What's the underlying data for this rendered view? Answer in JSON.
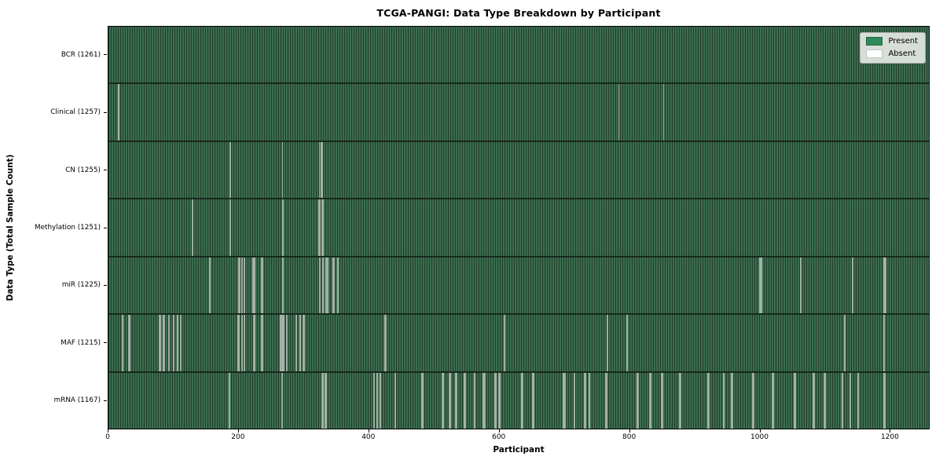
{
  "figure": {
    "title": "TCGA-PANGI: Data Type Breakdown by Participant",
    "x_axis": {
      "label": "Participant",
      "ticks": [
        "0",
        "200",
        "400",
        "600",
        "800",
        "1000",
        "1200"
      ],
      "tick_values": [
        0,
        200,
        400,
        600,
        800,
        1000,
        1200
      ]
    },
    "y_axis": {
      "label": "Data Type (Total Sample Count)"
    },
    "legend": {
      "items": [
        {
          "label": "Present",
          "color": "#2e8b57"
        },
        {
          "label": "Absent",
          "color": "#ffffff"
        }
      ]
    }
  },
  "colors": {
    "present_fill": "#2e8b57",
    "absent_fill": "#ffffff",
    "stripe_green": "#3c6d50",
    "stripe_dark": "#203f2b",
    "row_divider": "#16291d",
    "absent_line": "#a9b2a9",
    "legend_bg": "#d7ddd7"
  },
  "chart_data": {
    "type": "heatmap",
    "title": "TCGA-PANGI: Data Type Breakdown by Participant",
    "xlabel": "Participant",
    "ylabel": "Data Type (Total Sample Count)",
    "x_range": [
      0,
      1261
    ],
    "n_participants": 1261,
    "legend_entries": [
      "Present",
      "Absent"
    ],
    "legend_position": "upper right",
    "grid": false,
    "rows": [
      {
        "data_type": "BCR",
        "label": "BCR (1261)",
        "present_count": 1261,
        "absent_participants": []
      },
      {
        "data_type": "Clinical",
        "label": "Clinical (1257)",
        "present_count": 1257,
        "absent_participants": [
          15,
          16,
          784,
          853
        ]
      },
      {
        "data_type": "CN",
        "label": "CN (1255)",
        "present_count": 1255,
        "absent_participants": [
          186,
          187,
          267,
          324,
          327,
          328
        ]
      },
      {
        "data_type": "Methylation",
        "label": "Methylation (1251)",
        "present_count": 1251,
        "absent_participants": [
          129,
          186,
          187,
          267,
          268,
          323,
          324,
          325,
          328,
          329
        ]
      },
      {
        "data_type": "miR",
        "label": "miR (1225)",
        "present_count": 1225,
        "absent_participants": [
          155,
          156,
          200,
          201,
          204,
          205,
          208,
          209,
          222,
          223,
          224,
          235,
          236,
          267,
          268,
          324,
          325,
          329,
          330,
          334,
          336,
          337,
          345,
          346,
          352,
          353,
          1001,
          1002,
          1003,
          1063,
          1064,
          1143,
          1144,
          1192,
          1193,
          1194
        ]
      },
      {
        "data_type": "MAF",
        "label": "MAF (1215)",
        "present_count": 1215,
        "absent_participants": [
          21,
          22,
          31,
          32,
          78,
          79,
          84,
          85,
          92,
          93,
          99,
          100,
          105,
          106,
          110,
          111,
          199,
          200,
          204,
          205,
          208,
          209,
          223,
          224,
          235,
          236,
          264,
          265,
          268,
          269,
          273,
          274,
          288,
          289,
          294,
          295,
          299,
          300,
          425,
          426,
          608,
          766,
          767,
          797,
          1131,
          1192
        ]
      },
      {
        "data_type": "mRNA",
        "label": "mRNA (1167)",
        "present_count": 1167,
        "absent_participants": [
          185,
          186,
          266,
          267,
          328,
          329,
          333,
          334,
          407,
          408,
          412,
          413,
          417,
          418,
          440,
          441,
          481,
          482,
          483,
          513,
          514,
          523,
          524,
          525,
          533,
          534,
          535,
          546,
          547,
          548,
          562,
          563,
          576,
          577,
          578,
          594,
          595,
          600,
          601,
          634,
          635,
          636,
          651,
          652,
          653,
          699,
          700,
          701,
          715,
          716,
          731,
          732,
          733,
          738,
          739,
          764,
          765,
          812,
          813,
          814,
          832,
          833,
          850,
          851,
          877,
          878,
          879,
          921,
          922,
          945,
          946,
          957,
          958,
          959,
          990,
          991,
          1020,
          1021,
          1054,
          1055,
          1056,
          1083,
          1084,
          1100,
          1101,
          1127,
          1128,
          1139,
          1140,
          1151,
          1152,
          1191,
          1192,
          1193
        ]
      }
    ]
  }
}
